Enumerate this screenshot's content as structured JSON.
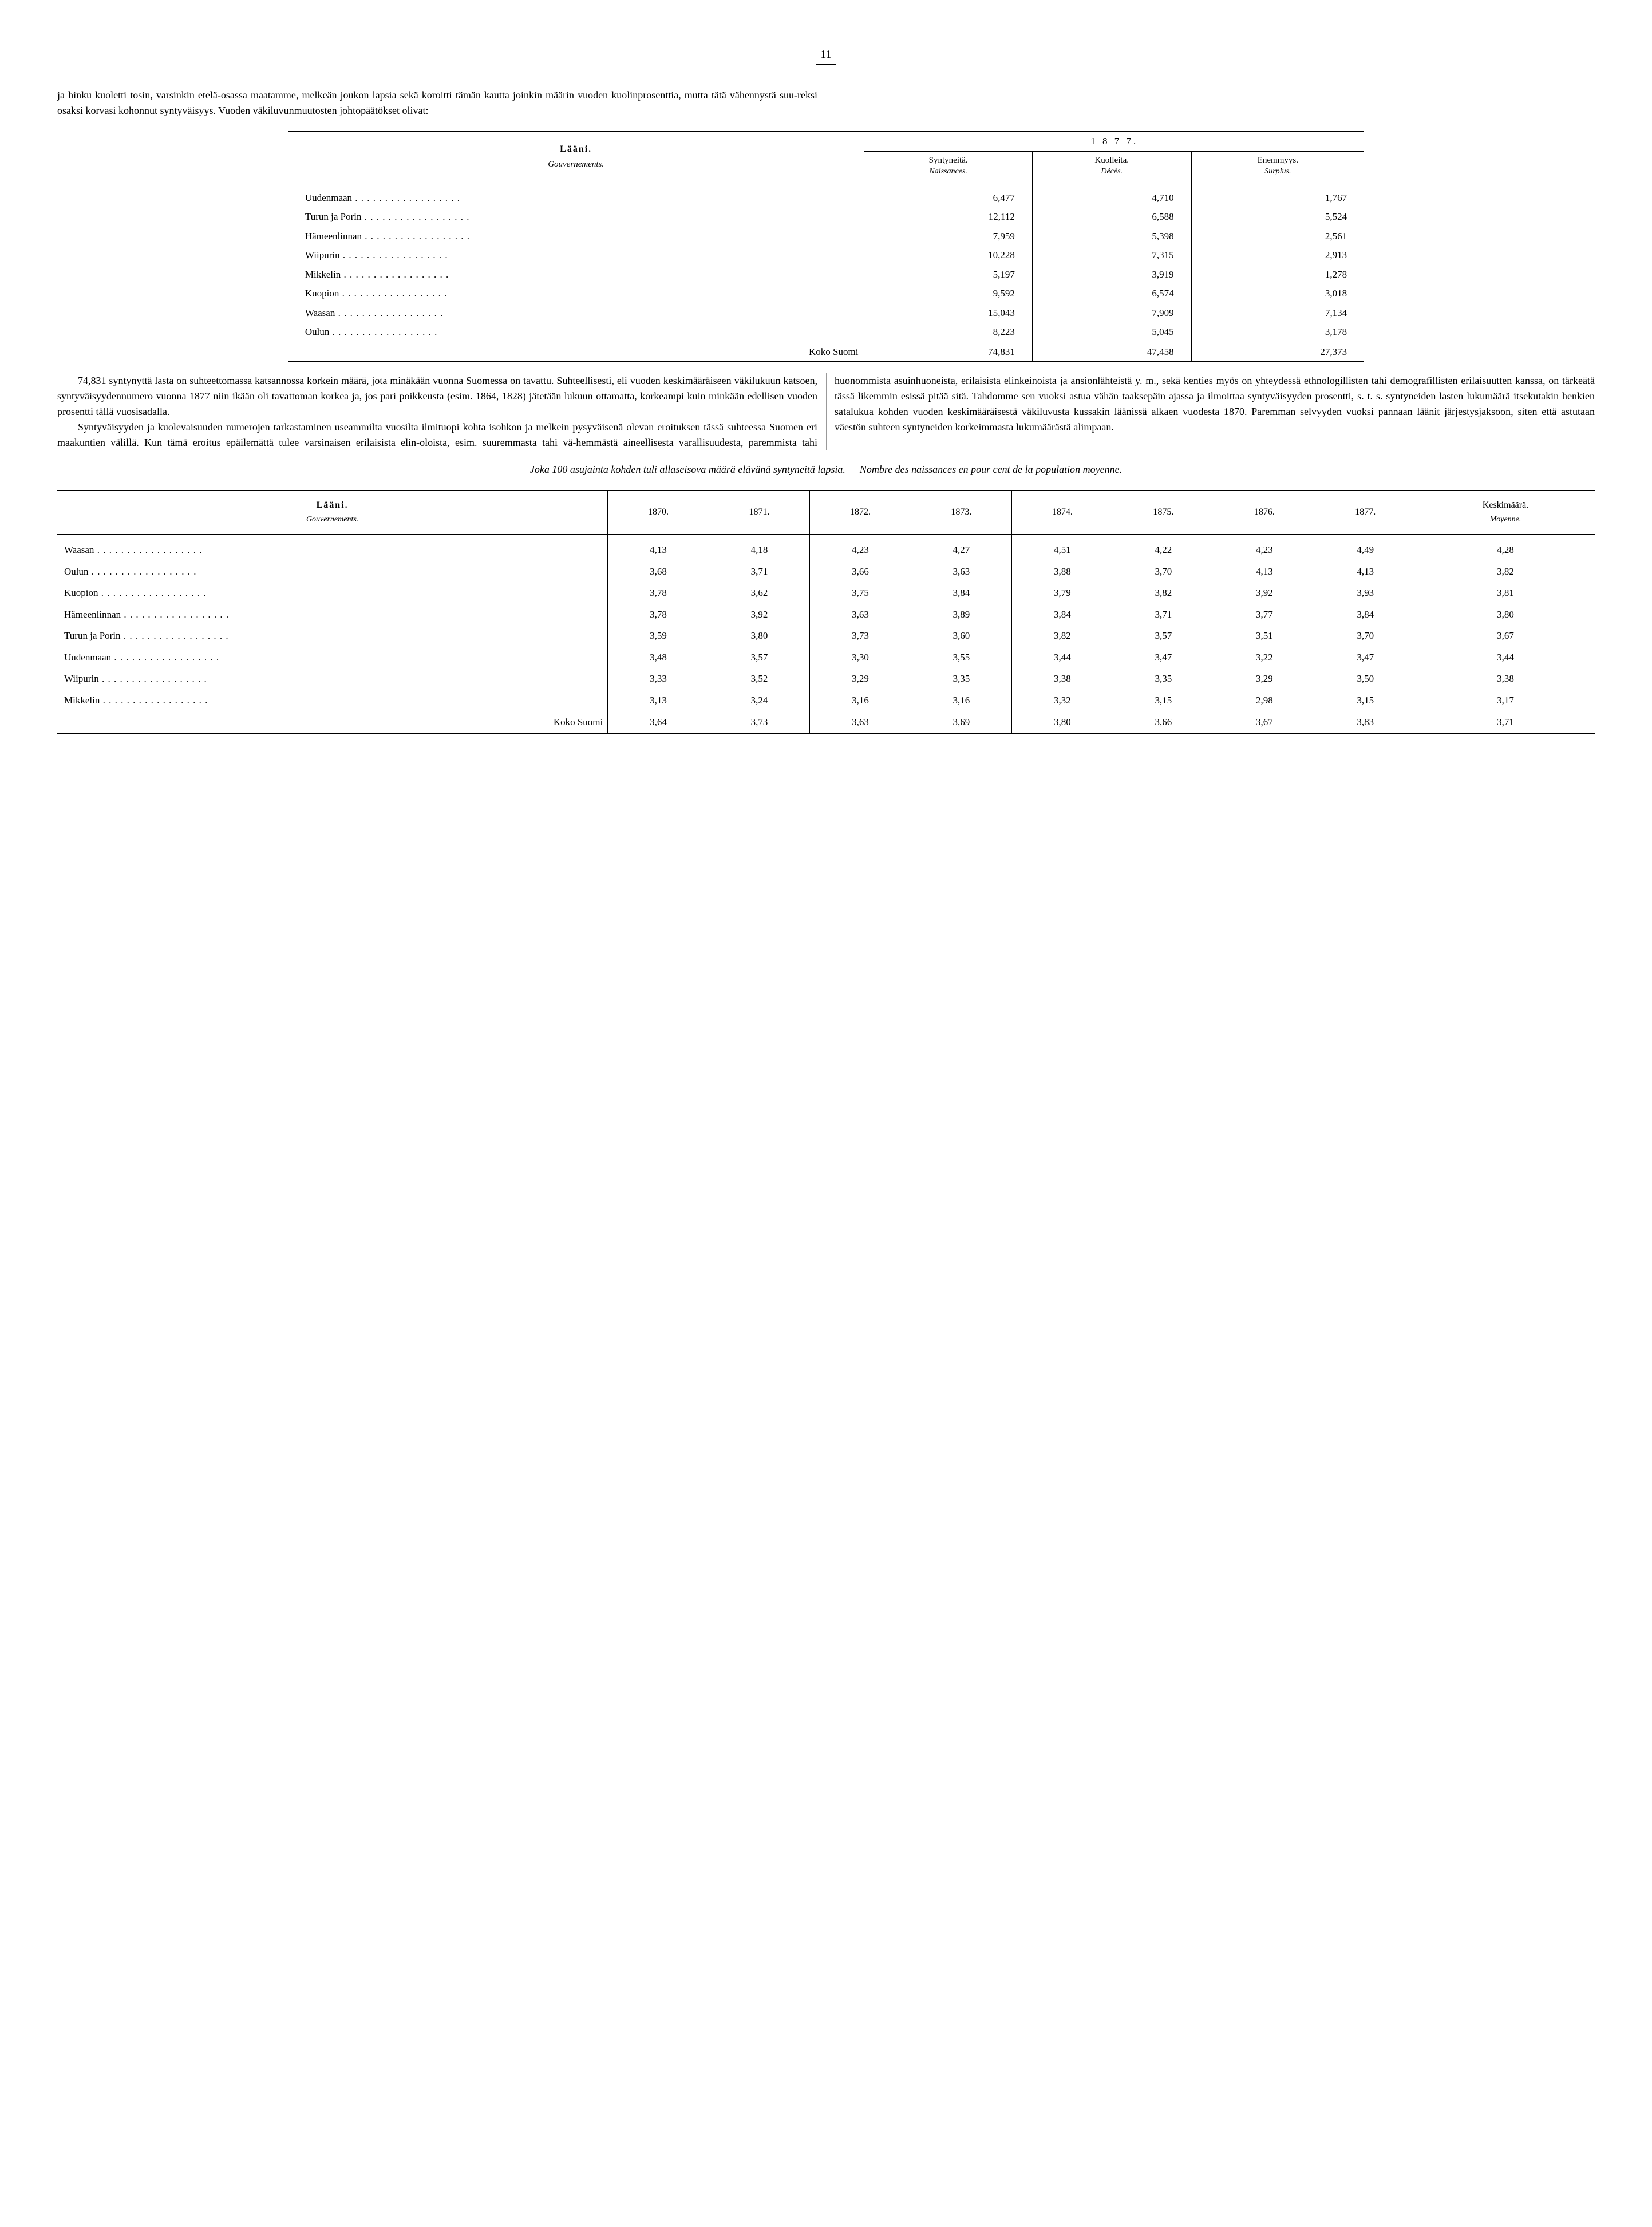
{
  "page_number": "11",
  "intro": {
    "para1": "ja hinku kuoletti tosin, varsinkin etelä-osassa maatamme, melkeän joukon lapsia sekä koroitti tämän kautta joinkin määrin vuoden kuolinprosenttia, mutta tätä vähennystä suu-",
    "para1b": "reksi osaksi korvasi kohonnut syntyväisyys. Vuoden väkilu­vunmuutosten johtopäätökset olivat:"
  },
  "table1": {
    "header_main": "Lääni.",
    "header_sub": "Gouvernements.",
    "year": "1 8 7 7.",
    "cols": [
      {
        "t1": "Syntyneitä.",
        "t2": "Naissances."
      },
      {
        "t1": "Kuolleita.",
        "t2": "Décès."
      },
      {
        "t1": "Enemmyys.",
        "t2": "Surplus."
      }
    ],
    "rows": [
      {
        "label": "Uudenmaan",
        "c": [
          "6,477",
          "4,710",
          "1,767"
        ]
      },
      {
        "label": "Turun ja Porin",
        "c": [
          "12,112",
          "6,588",
          "5,524"
        ]
      },
      {
        "label": "Hämeenlinnan",
        "c": [
          "7,959",
          "5,398",
          "2,561"
        ]
      },
      {
        "label": "Wiipurin",
        "c": [
          "10,228",
          "7,315",
          "2,913"
        ]
      },
      {
        "label": "Mikkelin",
        "c": [
          "5,197",
          "3,919",
          "1,278"
        ]
      },
      {
        "label": "Kuopion",
        "c": [
          "9,592",
          "6,574",
          "3,018"
        ]
      },
      {
        "label": "Waasan",
        "c": [
          "15,043",
          "7,909",
          "7,134"
        ]
      },
      {
        "label": "Oulun",
        "c": [
          "8,223",
          "5,045",
          "3,178"
        ]
      }
    ],
    "total_label": "Koko Suomi",
    "total": [
      "74,831",
      "47,458",
      "27,373"
    ]
  },
  "body": {
    "p1": "74,831 syntynyttä lasta on suhteettomassa katsannossa korkein määrä, jota minäkään vuonna Suomessa on tavattu. Suhteellisesti, eli vuoden keskimääräiseen väkilukuun katsoen, syntyväisyydennumero vuonna 1877 niin ikään oli tavattoman korkea ja, jos pari poikkeusta (esim. 1864, 1828) jätetään lukuun ottamatta, korkeampi kuin minkään edellisen vuoden prosentti tällä vuosisadalla.",
    "p2": "Syntyväisyyden ja kuolevaisuuden numerojen tarkastaminen useammilta vuosilta ilmituopi kohta isohkon ja melkein pysyväisenä olevan eroituksen tässä suhteessa Suomen eri maakuntien välillä. Kun tämä eroitus epäilemättä tulee varsinaisen erilaisista elin-oloista, esim. suuremmasta tahi vä-",
    "p2b": "hemmästä aineellisesta varallisuudesta, paremmista tahi huonommista asuinhuoneista, erilaisista elinkeinoista ja ansionlähteistä y. m., sekä kenties myös on yhteydessä ethnologillisten tahi demografillisten erilaisuutten kanssa, on tärkeätä tässä likemmin esissä pitää sitä. Tahdomme sen vuoksi astua vähän taaksepäin ajassa ja ilmoittaa syntyväisyyden prosentti, s. t. s. syntyneiden lasten lukumäärä itsekutakin henkien satalukua kohden vuoden keskimääräisestä väkiluvusta kussakin läänissä alkaen vuodesta 1870. Paremman selvyyden vuoksi pannaan läänit järjestysjaksoon, siten että astutaan väestön suhteen syntyneiden korkeimmasta lukumäärästä alimpaan."
  },
  "caption": "Joka 100 asujainta kohden tuli allaseisova määrä elävänä syntyneitä lapsia. — Nombre des naissances en pour cent de la population moyenne.",
  "table2": {
    "header_main": "Lääni.",
    "header_sub": "Gouvernements.",
    "years": [
      "1870.",
      "1871.",
      "1872.",
      "1873.",
      "1874.",
      "1875.",
      "1876.",
      "1877."
    ],
    "avg_t1": "Keskimäärä.",
    "avg_t2": "Moyenne.",
    "rows": [
      {
        "label": "Waasan",
        "c": [
          "4,13",
          "4,18",
          "4,23",
          "4,27",
          "4,51",
          "4,22",
          "4,23",
          "4,49",
          "4,28"
        ]
      },
      {
        "label": "Oulun",
        "c": [
          "3,68",
          "3,71",
          "3,66",
          "3,63",
          "3,88",
          "3,70",
          "4,13",
          "4,13",
          "3,82"
        ]
      },
      {
        "label": "Kuopion",
        "c": [
          "3,78",
          "3,62",
          "3,75",
          "3,84",
          "3,79",
          "3,82",
          "3,92",
          "3,93",
          "3,81"
        ]
      },
      {
        "label": "Hämeenlinnan",
        "c": [
          "3,78",
          "3,92",
          "3,63",
          "3,89",
          "3,84",
          "3,71",
          "3,77",
          "3,84",
          "3,80"
        ]
      },
      {
        "label": "Turun ja Porin",
        "c": [
          "3,59",
          "3,80",
          "3,73",
          "3,60",
          "3,82",
          "3,57",
          "3,51",
          "3,70",
          "3,67"
        ]
      },
      {
        "label": "Uudenmaan",
        "c": [
          "3,48",
          "3,57",
          "3,30",
          "3,55",
          "3,44",
          "3,47",
          "3,22",
          "3,47",
          "3,44"
        ]
      },
      {
        "label": "Wiipurin",
        "c": [
          "3,33",
          "3,52",
          "3,29",
          "3,35",
          "3,38",
          "3,35",
          "3,29",
          "3,50",
          "3,38"
        ]
      },
      {
        "label": "Mikkelin",
        "c": [
          "3,13",
          "3,24",
          "3,16",
          "3,16",
          "3,32",
          "3,15",
          "2,98",
          "3,15",
          "3,17"
        ]
      }
    ],
    "total_label": "Koko Suomi",
    "total": [
      "3,64",
      "3,73",
      "3,63",
      "3,69",
      "3,80",
      "3,66",
      "3,67",
      "3,83",
      "3,71"
    ]
  }
}
